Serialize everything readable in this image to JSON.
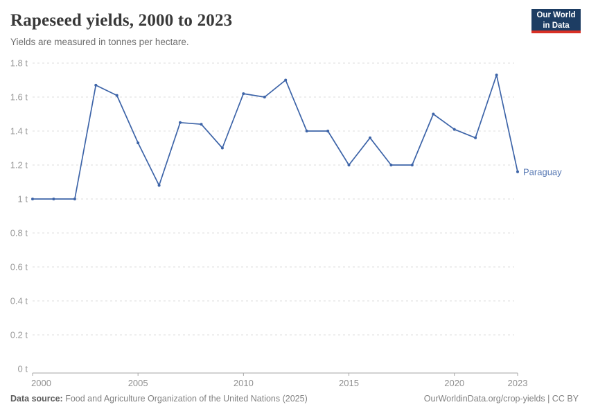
{
  "header": {
    "title": "Rapeseed yields, 2000 to 2023",
    "subtitle": "Yields are measured in tonnes per hectare.",
    "logo": {
      "line1": "Our World",
      "line2": "in Data",
      "bg_color": "#1d3d63",
      "accent_color": "#d93025"
    }
  },
  "chart_data": {
    "type": "line",
    "title": "Rapeseed yields, 2000 to 2023",
    "unit": "tonnes per hectare",
    "unit_suffix": " t",
    "x": [
      2000,
      2001,
      2002,
      2003,
      2004,
      2005,
      2006,
      2007,
      2008,
      2009,
      2010,
      2011,
      2012,
      2013,
      2014,
      2015,
      2016,
      2017,
      2018,
      2019,
      2020,
      2021,
      2022,
      2023
    ],
    "series": [
      {
        "name": "Paraguay",
        "color": "#3d64a8",
        "label_color": "#5879b4",
        "values": [
          1.0,
          1.0,
          1.0,
          1.67,
          1.61,
          1.33,
          1.08,
          1.45,
          1.44,
          1.3,
          1.62,
          1.6,
          1.7,
          1.4,
          1.4,
          1.2,
          1.36,
          1.2,
          1.2,
          1.5,
          1.41,
          1.36,
          1.73,
          1.16
        ]
      }
    ],
    "x_ticks": [
      2000,
      2005,
      2010,
      2015,
      2020,
      2023
    ],
    "y_ticks": [
      0,
      0.2,
      0.4,
      0.6,
      0.8,
      1.0,
      1.2,
      1.4,
      1.6,
      1.8
    ],
    "xlim": [
      2000,
      2023
    ],
    "ylim": [
      0,
      1.8
    ],
    "grid": "horizontal-dashed",
    "legend_position": "end-of-line"
  },
  "footer": {
    "datasource_label": "Data source:",
    "datasource_text": "Food and Agriculture Organization of the United Nations (2025)",
    "attribution": "OurWorldinData.org/crop-yields | CC BY"
  }
}
